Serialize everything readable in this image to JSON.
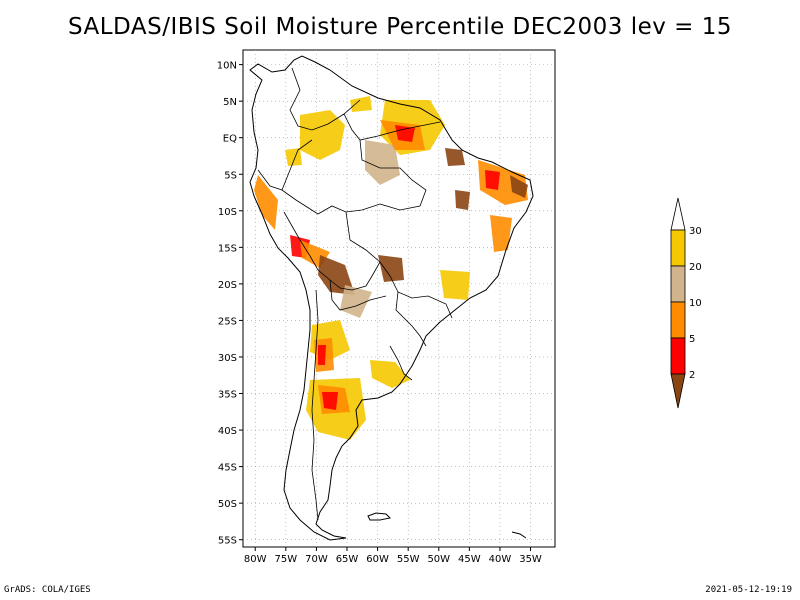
{
  "title": "SALDAS/IBIS Soil Moisture Percentile DEC2003 lev = 15",
  "footer": {
    "left": "GrADS: COLA/IGES",
    "right": "2021-05-12-19:19"
  },
  "map": {
    "lon_range": [
      -82,
      -31
    ],
    "lat_range": [
      -56,
      12
    ],
    "grid": "dotted",
    "lon_ticks": [
      "80W",
      "75W",
      "70W",
      "65W",
      "60W",
      "55W",
      "50W",
      "45W",
      "40W",
      "35W"
    ],
    "lat_ticks": [
      "10N",
      "5N",
      "EQ",
      "5S",
      "10S",
      "15S",
      "20S",
      "25S",
      "30S",
      "35S",
      "40S",
      "45S",
      "50S",
      "55S"
    ]
  },
  "legend": {
    "placement": "right",
    "labels": [
      "30",
      "20",
      "10",
      "5",
      "2"
    ],
    "colors": {
      "above_30": "#ffffff",
      "20_30": "#f5c800",
      "10_20": "#d2b48c",
      "5_10": "#ff8c00",
      "2_5": "#ff0000",
      "below_2": "#8b4513"
    }
  }
}
